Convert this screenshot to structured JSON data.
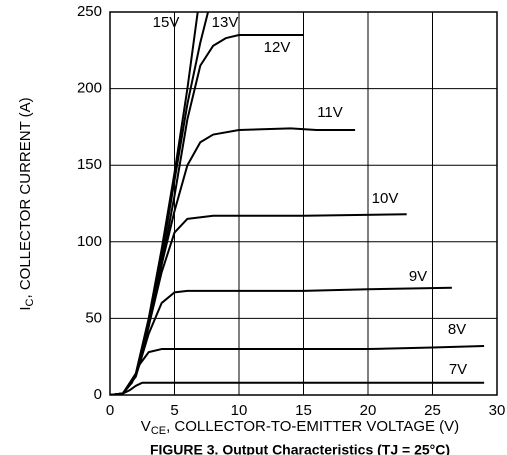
{
  "chart_data": {
    "type": "line",
    "title": "FIGURE 3. Output Characteristics (TJ = 25°C)",
    "xlabel": {
      "symbol": "V",
      "subscript": "CE",
      "text": ", COLLECTOR-TO-EMITTER VOLTAGE (V)"
    },
    "ylabel": {
      "symbol": "I",
      "subscript": "C",
      "text": ", COLLECTOR CURRENT (A)"
    },
    "xlim": [
      0,
      30
    ],
    "xticks": [
      0,
      5,
      10,
      15,
      20,
      25,
      30
    ],
    "ylim": [
      0,
      250
    ],
    "yticks": [
      0,
      50,
      100,
      150,
      200,
      250
    ],
    "grid": true,
    "series": [
      {
        "name": "7V",
        "color": "#000000",
        "x": [
          0,
          1,
          1.5,
          2,
          2.5,
          5,
          10,
          20,
          29
        ],
        "values": [
          0,
          1,
          3,
          6,
          8,
          8,
          8,
          8,
          8
        ]
      },
      {
        "name": "8V",
        "color": "#000000",
        "x": [
          0,
          1,
          1.7,
          2.3,
          3,
          4,
          10,
          20,
          25,
          29
        ],
        "values": [
          0,
          1,
          8,
          20,
          28,
          30,
          30,
          30,
          31,
          32
        ]
      },
      {
        "name": "9V",
        "color": "#000000",
        "x": [
          0,
          1,
          2,
          3,
          4,
          5,
          6,
          15,
          20,
          26.5
        ],
        "values": [
          0,
          1,
          12,
          40,
          60,
          67,
          68,
          68,
          69,
          70
        ]
      },
      {
        "name": "10V",
        "color": "#000000",
        "x": [
          0,
          1,
          2,
          3,
          4,
          5,
          6,
          8,
          15,
          23
        ],
        "values": [
          0,
          1,
          13,
          45,
          80,
          106,
          115,
          117,
          117,
          118
        ]
      },
      {
        "name": "11V",
        "color": "#000000",
        "x": [
          0,
          1,
          2,
          3,
          4,
          5,
          6,
          7,
          8,
          10,
          14,
          16,
          19
        ],
        "values": [
          0,
          1,
          13,
          45,
          85,
          120,
          150,
          165,
          170,
          173,
          174,
          173,
          173
        ]
      },
      {
        "name": "12V",
        "color": "#000000",
        "x": [
          0,
          1,
          2,
          3,
          4,
          5,
          6,
          7,
          8,
          9,
          10,
          15
        ],
        "values": [
          0,
          1,
          13,
          45,
          85,
          130,
          180,
          215,
          228,
          233,
          235,
          235
        ]
      },
      {
        "name": "13V",
        "color": "#000000",
        "x": [
          0,
          1,
          2,
          3,
          4,
          5,
          6,
          7,
          7.6
        ],
        "values": [
          0,
          1,
          13,
          45,
          90,
          140,
          190,
          230,
          250
        ]
      },
      {
        "name": "15V",
        "color": "#000000",
        "x": [
          0,
          1,
          2,
          3,
          4,
          5,
          6,
          6.8
        ],
        "values": [
          0,
          1,
          14,
          50,
          95,
          145,
          200,
          250
        ]
      }
    ]
  }
}
